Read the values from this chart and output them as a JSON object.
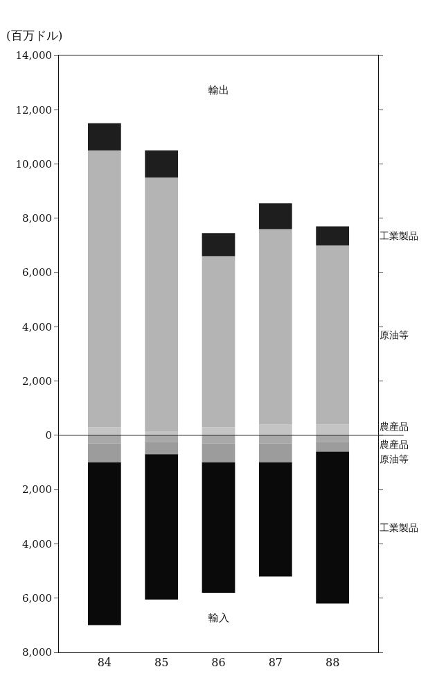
{
  "chart_data": {
    "type": "bar",
    "stacked": true,
    "ylabel": "(百万ドル)",
    "categories": [
      "84",
      "85",
      "86",
      "87",
      "88"
    ],
    "series": [
      {
        "name": "農産品",
        "color": "#c4c4c4",
        "values": [
          300,
          150,
          300,
          400,
          400
        ]
      },
      {
        "name": "原油等",
        "color": "#b4b4b4",
        "values": [
          10200,
          9350,
          6300,
          7200,
          6600
        ]
      },
      {
        "name": "工業製品",
        "color": "#1e1e1e",
        "values": [
          1000,
          1000,
          850,
          950,
          700
        ]
      },
      {
        "name": "農産品",
        "color": "#a8a8a8",
        "values": [
          -300,
          -250,
          -300,
          -300,
          -250
        ]
      },
      {
        "name": "原油等",
        "color": "#9c9c9c",
        "values": [
          -700,
          -450,
          -700,
          -700,
          -350
        ]
      },
      {
        "name": "工業製品",
        "color": "#0a0a0a",
        "values": [
          -6000,
          -5350,
          -4800,
          -4200,
          -5600
        ]
      }
    ],
    "ylim": [
      -8000,
      14000
    ],
    "yticks": [
      {
        "value": 14000,
        "label": "14,000"
      },
      {
        "value": 12000,
        "label": "12,000"
      },
      {
        "value": 10000,
        "label": "10,000"
      },
      {
        "value": 8000,
        "label": "8,000"
      },
      {
        "value": 6000,
        "label": "6,000"
      },
      {
        "value": 4000,
        "label": "4,000"
      },
      {
        "value": 2000,
        "label": "2,000"
      },
      0,
      {
        "value": -2000,
        "label": "2,000"
      },
      {
        "value": -4000,
        "label": "4,000"
      },
      {
        "value": -6000,
        "label": "6,000"
      },
      {
        "value": -8000,
        "label": "8,000"
      }
    ],
    "ref_lines": [
      {
        "axis": "y",
        "value": 0,
        "label": null,
        "color": "#222222"
      }
    ],
    "annotations": [
      "輸出",
      "輸入"
    ],
    "legend": false
  }
}
